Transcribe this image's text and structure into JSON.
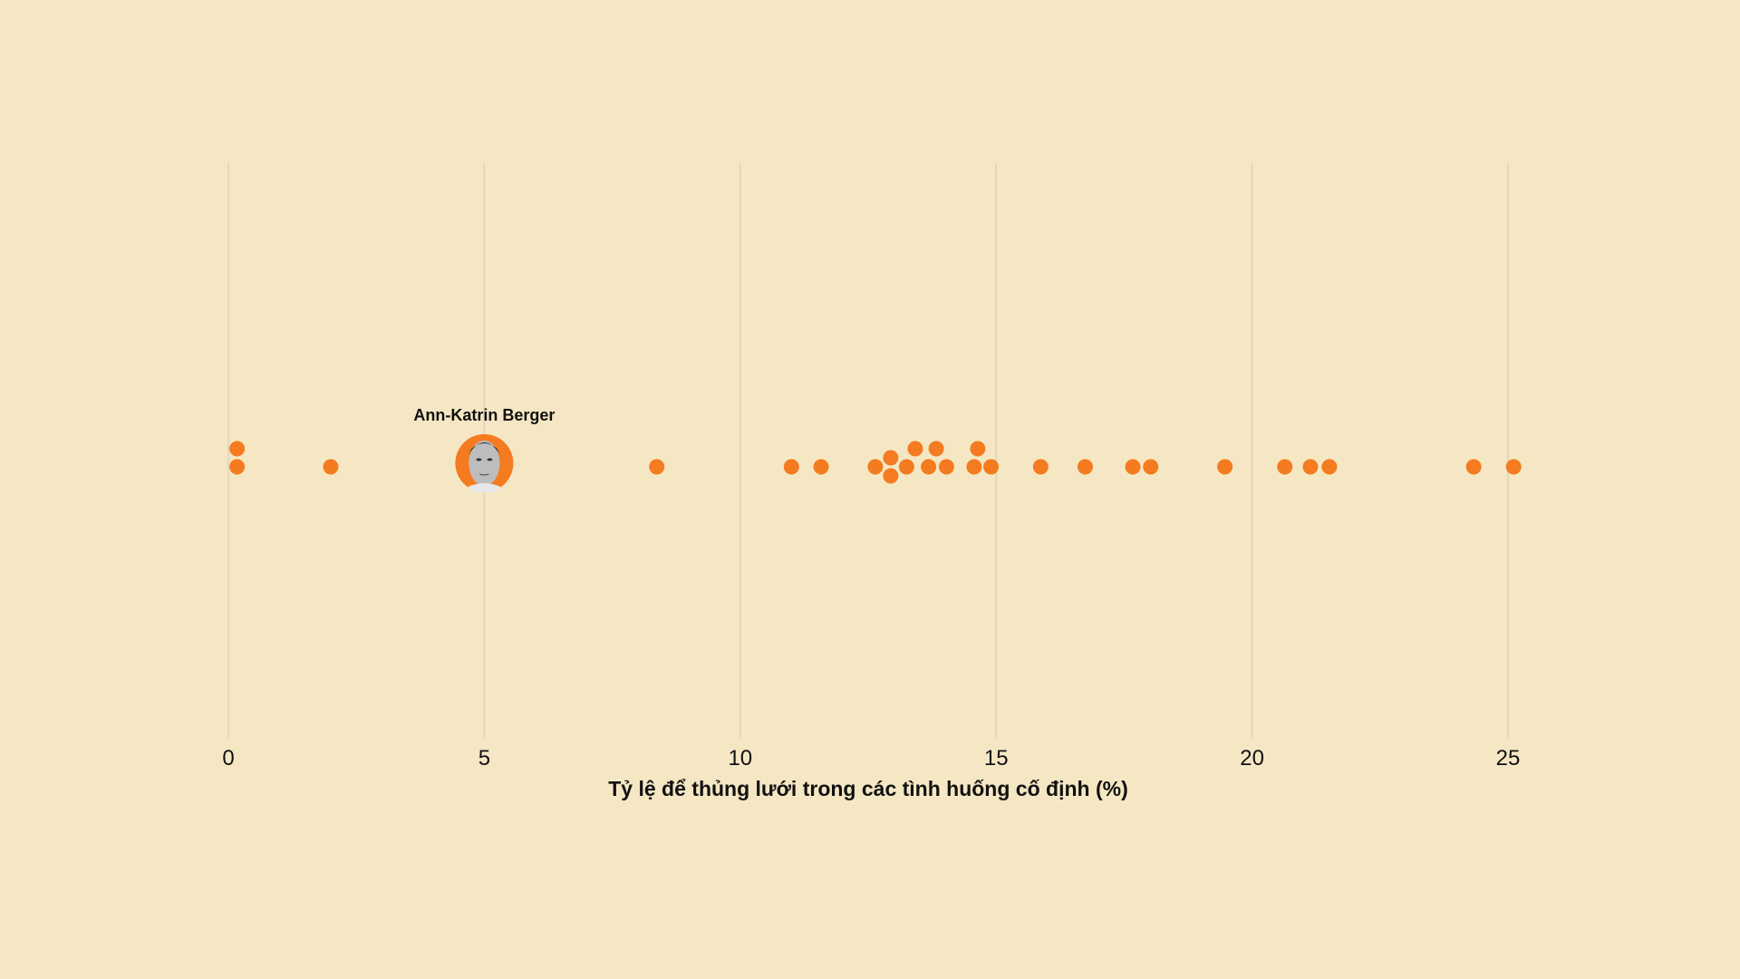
{
  "chart_data": {
    "type": "scatter",
    "subtype": "beeswarm",
    "title": "",
    "xlabel": "Tỷ lệ để thủng lưới trong các tình huống cố định (%)",
    "xlim": [
      0,
      25
    ],
    "xticks": [
      0,
      5,
      10,
      15,
      20,
      25
    ],
    "xtick_labels": [
      "0",
      "5",
      "10",
      "15",
      "20",
      "25"
    ],
    "grid": true,
    "point_color": "#f47b20",
    "gridline_color": "#ddd3b8",
    "highlight": {
      "name": "Ann-Katrin Berger",
      "value": 5.0,
      "icon": "player-photo"
    },
    "values": [
      0.17,
      0.17,
      2.0,
      8.37,
      11.0,
      11.58,
      12.64,
      12.94,
      12.94,
      13.25,
      13.42,
      13.68,
      13.83,
      14.03,
      14.57,
      14.64,
      14.9,
      15.87,
      16.74,
      17.67,
      18.02,
      19.47,
      20.64,
      21.14,
      21.51,
      24.33,
      25.11
    ]
  }
}
